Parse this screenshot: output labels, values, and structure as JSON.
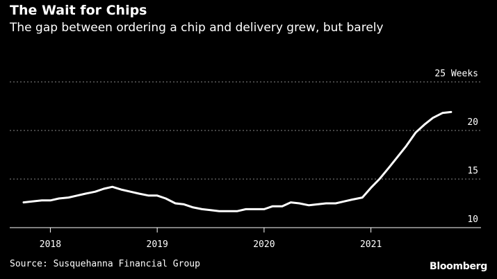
{
  "chart_data": {
    "type": "line",
    "title": "The Wait for Chips",
    "subtitle": "The gap between ordering a chip and delivery grew, but barely",
    "source": "Source: Susquehanna Financial Group",
    "brand": "Bloomberg",
    "ylim": [
      10,
      25
    ],
    "yticks": [
      {
        "value": 25,
        "label": "25 Weeks"
      },
      {
        "value": 20,
        "label": "20"
      },
      {
        "value": 15,
        "label": "15"
      },
      {
        "value": 10,
        "label": "10"
      }
    ],
    "xlim": [
      2017.75,
      2021.77
    ],
    "xticks": [
      {
        "value": 2018,
        "label": "2018"
      },
      {
        "value": 2019,
        "label": "2019"
      },
      {
        "value": 2020,
        "label": "2020"
      },
      {
        "value": 2021,
        "label": "2021"
      }
    ],
    "grid": true,
    "line_color": "#ffffff",
    "series": [
      {
        "x": [
          2017.75,
          2017.83,
          2017.92,
          2018.0,
          2018.08,
          2018.17,
          2018.25,
          2018.33,
          2018.42,
          2018.5,
          2018.58,
          2018.67,
          2018.75,
          2018.83,
          2018.92,
          2019.0,
          2019.08,
          2019.17,
          2019.25,
          2019.33,
          2019.42,
          2019.5,
          2019.58,
          2019.67,
          2019.75,
          2019.83,
          2019.92,
          2020.0,
          2020.08,
          2020.17,
          2020.25,
          2020.33,
          2020.42,
          2020.5,
          2020.58,
          2020.67,
          2020.75,
          2020.83,
          2020.92,
          2021.0,
          2021.08,
          2021.17,
          2021.25,
          2021.33,
          2021.42,
          2021.5,
          2021.58,
          2021.67,
          2021.75
        ],
        "y": [
          12.6,
          12.7,
          12.8,
          12.8,
          13.0,
          13.1,
          13.3,
          13.5,
          13.7,
          14.0,
          14.2,
          13.9,
          13.7,
          13.5,
          13.3,
          13.3,
          13.0,
          12.5,
          12.4,
          12.1,
          11.9,
          11.8,
          11.7,
          11.7,
          11.7,
          11.9,
          11.9,
          11.9,
          12.2,
          12.2,
          12.6,
          12.5,
          12.3,
          12.4,
          12.5,
          12.5,
          12.7,
          12.9,
          13.1,
          14.1,
          15.0,
          16.2,
          17.3,
          18.4,
          19.8,
          20.6,
          21.3,
          21.8,
          21.9
        ]
      }
    ]
  }
}
